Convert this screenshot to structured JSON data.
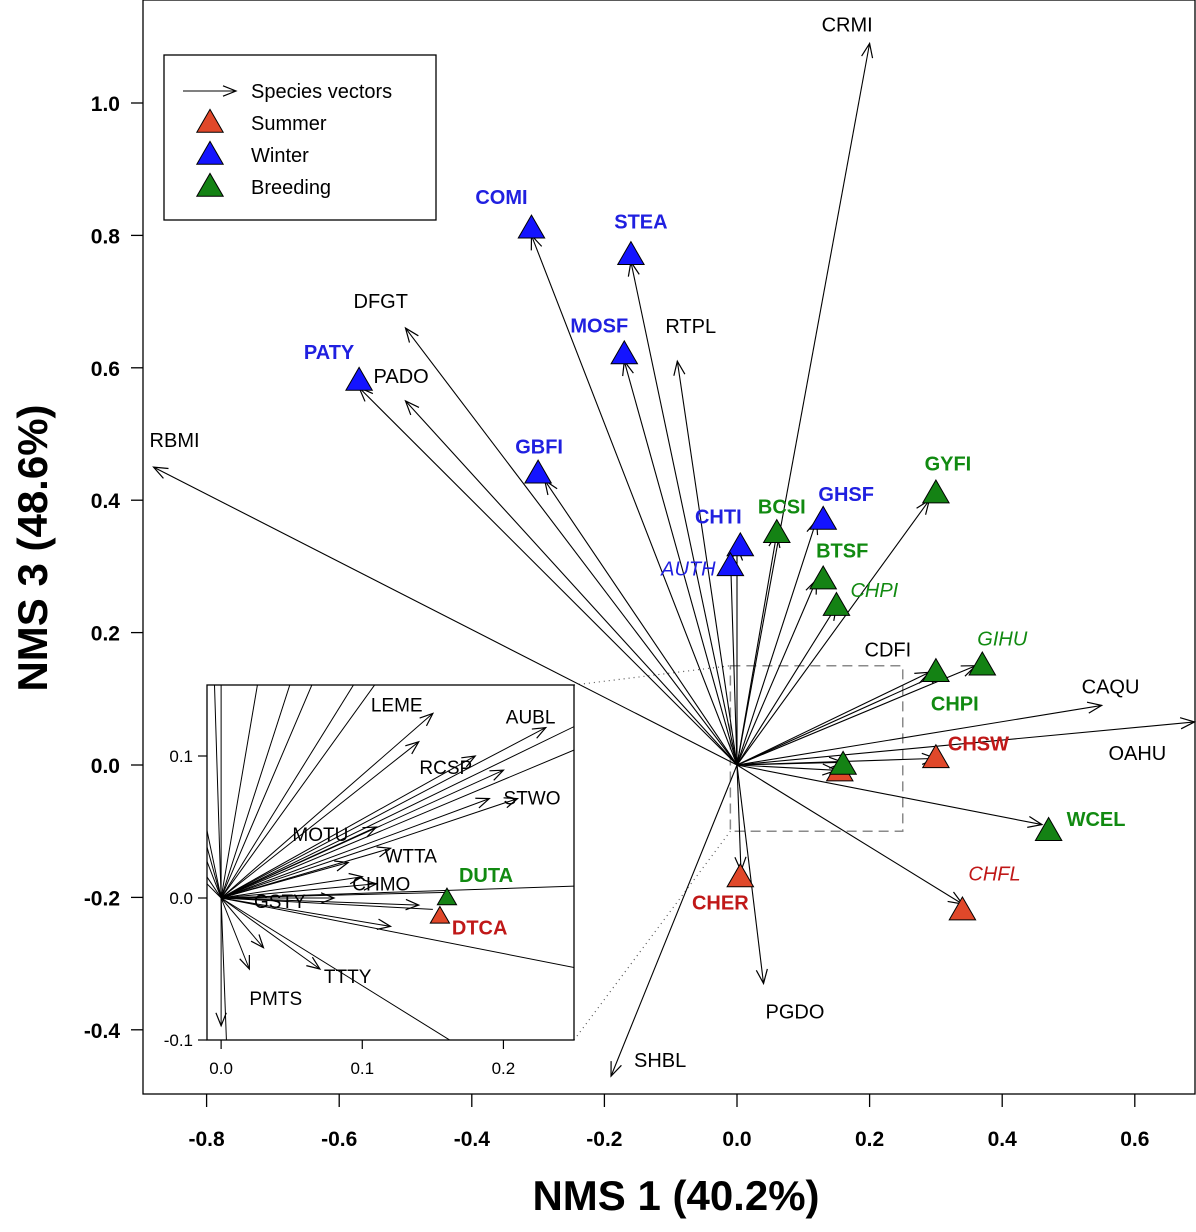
{
  "chart_data": {
    "type": "scatter",
    "xlabel": "NMS 1 (40.2%)",
    "ylabel": "NMS 3 (48.6%)",
    "xlim": [
      -0.9,
      0.7
    ],
    "ylim": [
      -0.48,
      1.15
    ],
    "xticks": [
      "-0.8",
      "-0.6",
      "-0.4",
      "-0.2",
      "0.0",
      "0.2",
      "0.4",
      "0.6"
    ],
    "xtick_values": [
      -0.8,
      -0.6,
      -0.4,
      -0.2,
      0.0,
      0.2,
      0.4,
      0.6
    ],
    "yticks": [
      "-0.4",
      "-0.2",
      "0.0",
      "0.2",
      "0.4",
      "0.6",
      "0.8",
      "1.0"
    ],
    "ytick_values": [
      -0.4,
      -0.2,
      0.0,
      0.2,
      0.4,
      0.6,
      0.8,
      1.0
    ],
    "legend": {
      "position": "top-left",
      "entries": [
        {
          "label": "Species vectors",
          "kind": "arrow"
        },
        {
          "label": "Summer",
          "kind": "triangle",
          "color": "#E0482A"
        },
        {
          "label": "Winter",
          "kind": "triangle",
          "color": "#1414FF"
        },
        {
          "label": "Breeding",
          "kind": "triangle",
          "color": "#148214"
        }
      ]
    },
    "colors": {
      "summer": "#E0482A",
      "winter": "#1414FF",
      "breeding": "#148214",
      "summer_label": "#C01818",
      "winter_label": "#2020E0",
      "breeding_label": "#118A11"
    },
    "series": [
      {
        "name": "Summer",
        "color": "#E0482A",
        "points": [
          {
            "label": "CHSW",
            "x": 0.3,
            "y": 0.01,
            "italic": false
          },
          {
            "label": "CHFL",
            "x": 0.34,
            "y": -0.22,
            "italic": true
          },
          {
            "label": "CHER",
            "x": 0.005,
            "y": -0.17,
            "italic": false
          },
          {
            "label": "DTCA",
            "x": 0.155,
            "y": -0.01,
            "italic": false
          }
        ]
      },
      {
        "name": "Winter",
        "color": "#1414FF",
        "points": [
          {
            "label": "COMI",
            "x": -0.31,
            "y": 0.81,
            "italic": false
          },
          {
            "label": "STEA",
            "x": -0.16,
            "y": 0.77,
            "italic": false
          },
          {
            "label": "MOSF",
            "x": -0.17,
            "y": 0.62,
            "italic": false
          },
          {
            "label": "PATY",
            "x": -0.57,
            "y": 0.58,
            "italic": false
          },
          {
            "label": "GBFI",
            "x": -0.3,
            "y": 0.44,
            "italic": false
          },
          {
            "label": "GHSF",
            "x": 0.13,
            "y": 0.37,
            "italic": false
          },
          {
            "label": "CHTI",
            "x": 0.005,
            "y": 0.33,
            "italic": false
          },
          {
            "label": "AUTH",
            "x": -0.01,
            "y": 0.3,
            "italic": true
          }
        ]
      },
      {
        "name": "Breeding",
        "color": "#148214",
        "points": [
          {
            "label": "GYFI",
            "x": 0.3,
            "y": 0.41,
            "italic": false
          },
          {
            "label": "BCSI",
            "x": 0.06,
            "y": 0.35,
            "italic": false
          },
          {
            "label": "BTSF",
            "x": 0.13,
            "y": 0.28,
            "italic": false
          },
          {
            "label": "CHPI",
            "x": 0.15,
            "y": 0.24,
            "italic": true
          },
          {
            "label": "GIHU",
            "x": 0.37,
            "y": 0.15,
            "italic": true
          },
          {
            "label": "CHPI",
            "x": 0.3,
            "y": 0.14,
            "italic": false
          },
          {
            "label": "WCEL",
            "x": 0.47,
            "y": -0.1,
            "italic": false
          },
          {
            "label": "DUTA",
            "x": 0.16,
            "y": 0.0,
            "italic": false
          }
        ]
      }
    ],
    "vectors": [
      {
        "label": "CRMI",
        "x": 0.2,
        "y": 1.09
      },
      {
        "label": "DFGT",
        "x": -0.5,
        "y": 0.66
      },
      {
        "label": "RTPL",
        "x": -0.09,
        "y": 0.61
      },
      {
        "label": "PADO",
        "x": -0.5,
        "y": 0.55
      },
      {
        "label": "RBMI",
        "x": -0.88,
        "y": 0.45
      },
      {
        "label": "CDFI",
        "x": 0.31,
        "y": 0.14
      },
      {
        "label": "CAQU",
        "x": 0.55,
        "y": 0.09
      },
      {
        "label": "OAHU",
        "x": 0.69,
        "y": 0.065
      },
      {
        "label": "PGDO",
        "x": 0.04,
        "y": -0.33
      },
      {
        "label": "SHBL",
        "x": -0.19,
        "y": -0.47
      },
      {
        "label": "",
        "x": -0.31,
        "y": 0.8
      },
      {
        "label": "",
        "x": -0.16,
        "y": 0.76
      },
      {
        "label": "",
        "x": -0.17,
        "y": 0.61
      },
      {
        "label": "",
        "x": -0.57,
        "y": 0.57
      },
      {
        "label": "",
        "x": -0.29,
        "y": 0.43
      },
      {
        "label": "",
        "x": -0.01,
        "y": 0.32
      },
      {
        "label": "",
        "x": 0.0,
        "y": 0.33
      },
      {
        "label": "",
        "x": 0.06,
        "y": 0.35
      },
      {
        "label": "",
        "x": 0.12,
        "y": 0.37
      },
      {
        "label": "",
        "x": 0.12,
        "y": 0.28
      },
      {
        "label": "",
        "x": 0.15,
        "y": 0.24
      },
      {
        "label": "",
        "x": 0.29,
        "y": 0.4
      },
      {
        "label": "",
        "x": 0.36,
        "y": 0.15
      },
      {
        "label": "",
        "x": 0.29,
        "y": 0.14
      },
      {
        "label": "",
        "x": 0.46,
        "y": -0.09
      },
      {
        "label": "",
        "x": 0.34,
        "y": -0.21
      },
      {
        "label": "",
        "x": 0.3,
        "y": 0.01
      },
      {
        "label": "",
        "x": 0.006,
        "y": -0.16
      },
      {
        "label": "",
        "x": 0.15,
        "y": -0.008
      },
      {
        "label": "",
        "x": 0.16,
        "y": 0.004
      }
    ],
    "inset_vectors": [
      {
        "label": "LEME",
        "x": 0.15,
        "y": 0.13
      },
      {
        "label": "AUBL",
        "x": 0.23,
        "y": 0.12
      },
      {
        "label": "RCSP",
        "x": 0.2,
        "y": 0.09
      },
      {
        "label": "STWO",
        "x": 0.21,
        "y": 0.07
      },
      {
        "label": "MOTU",
        "x": 0.11,
        "y": 0.05
      },
      {
        "label": "WTTA",
        "x": 0.12,
        "y": 0.035
      },
      {
        "label": "CHMO",
        "x": 0.1,
        "y": 0.015
      },
      {
        "label": "GSTY",
        "x": 0.08,
        "y": 0.0
      },
      {
        "label": "PMTS",
        "x": 0.02,
        "y": -0.05
      },
      {
        "label": "TTTY",
        "x": 0.07,
        "y": -0.05
      },
      {
        "label": "",
        "x": 0.0,
        "y": -0.09
      },
      {
        "label": "",
        "x": 0.03,
        "y": -0.035
      },
      {
        "label": "",
        "x": 0.14,
        "y": 0.11
      },
      {
        "label": "",
        "x": 0.18,
        "y": 0.1
      },
      {
        "label": "",
        "x": 0.19,
        "y": 0.07
      },
      {
        "label": "",
        "x": 0.09,
        "y": 0.025
      },
      {
        "label": "",
        "x": 0.11,
        "y": 0.01
      },
      {
        "label": "",
        "x": 0.14,
        "y": -0.005
      },
      {
        "label": "",
        "x": 0.12,
        "y": -0.02
      }
    ],
    "inset": {
      "xlim": [
        -0.01,
        0.25
      ],
      "ylim": [
        -0.1,
        0.15
      ],
      "xticks": [
        "0.0",
        "0.1",
        "0.2"
      ],
      "xtick_values": [
        0.0,
        0.1,
        0.2
      ],
      "yticks": [
        "-0.1",
        "0.0",
        "0.1"
      ],
      "ytick_values": [
        -0.1,
        0.0,
        0.1
      ],
      "zoom_region": {
        "xlim": [
          -0.01,
          0.25
        ],
        "ylim": [
          -0.1,
          0.15
        ]
      },
      "points": [
        {
          "label": "DUTA",
          "x": 0.16,
          "y": -0.0,
          "series": "Breeding"
        },
        {
          "label": "DTCA",
          "x": 0.155,
          "y": -0.013,
          "series": "Summer"
        }
      ]
    }
  }
}
